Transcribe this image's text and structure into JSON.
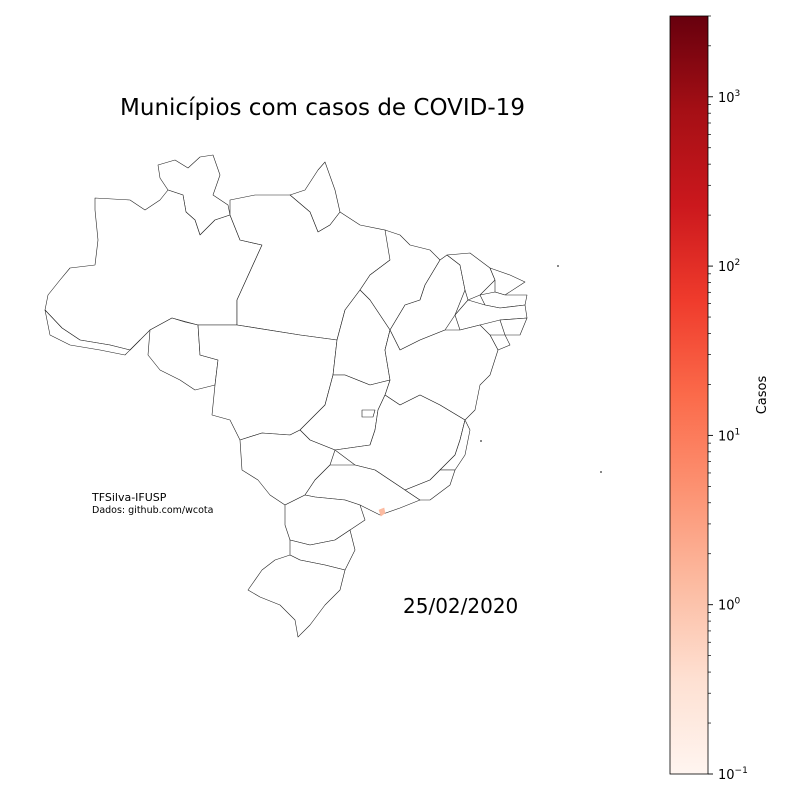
{
  "map": {
    "title": "Municípios com casos de COVID-19",
    "date": "25/02/2020",
    "credit": "TFSilva-IFUSP",
    "source": "Dados: github.com/wcota",
    "highlighted_municipality_color": "#fcbba1",
    "border_color": "#000000",
    "fill_color": "#ffffff"
  },
  "colorbar": {
    "label": "Casos",
    "scale": "log",
    "range": [
      0.1,
      3000
    ],
    "ticks": [
      {
        "value": 0.1,
        "base": "10",
        "exp": "−1"
      },
      {
        "value": 1,
        "base": "10",
        "exp": "0"
      },
      {
        "value": 10,
        "base": "10",
        "exp": "1"
      },
      {
        "value": 100,
        "base": "10",
        "exp": "2"
      },
      {
        "value": 1000,
        "base": "10",
        "exp": "3"
      }
    ],
    "colormap": "Reds",
    "colors": [
      "#fff5f0",
      "#fee0d2",
      "#fcbba1",
      "#fc9272",
      "#fb6a4a",
      "#ef3b2c",
      "#cb181d",
      "#a50f15",
      "#67000d"
    ]
  }
}
